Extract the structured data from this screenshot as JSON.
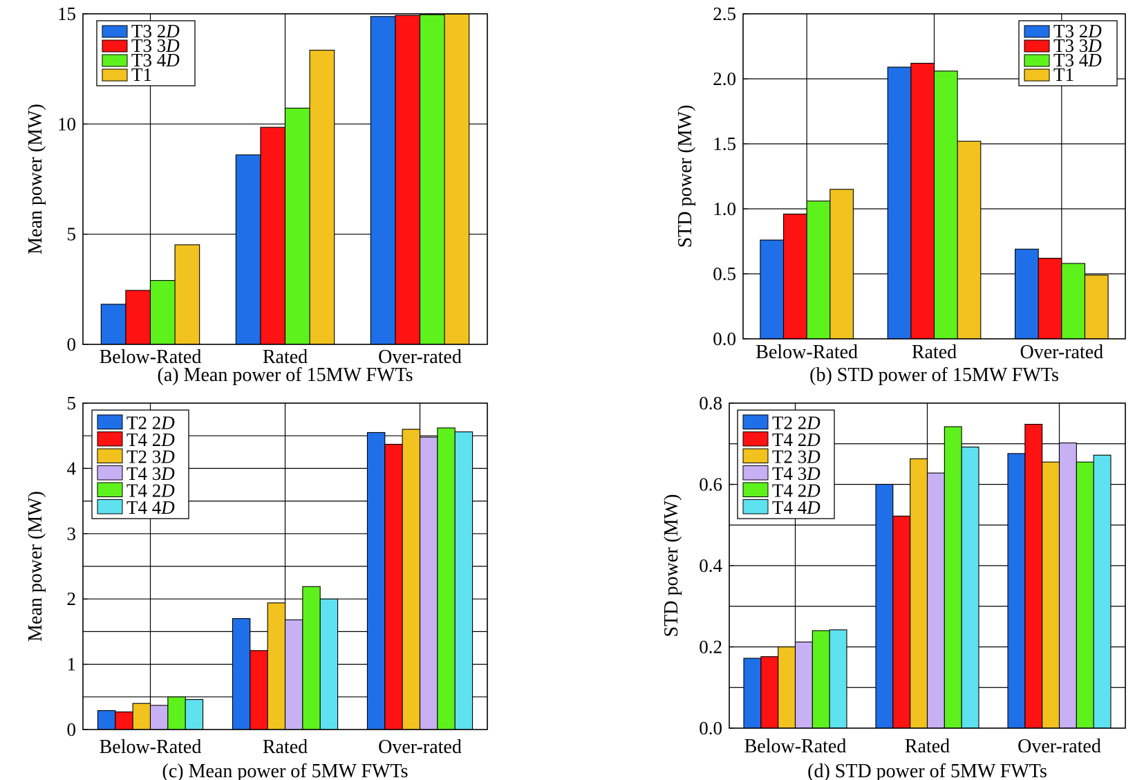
{
  "chart_data": [
    {
      "type": "bar",
      "caption": "(a) Mean power of 15MW FWTs",
      "ylabel": "Mean power (MW)",
      "xlabel": "",
      "categories": [
        "Below-Rated",
        "Rated",
        "Over-rated"
      ],
      "ylim": [
        0,
        15
      ],
      "yticks": [
        0,
        5,
        10,
        15
      ],
      "ytick_labels": [
        "0",
        "5",
        "10",
        "15"
      ],
      "grid": true,
      "legend_position": "top-left",
      "series": [
        {
          "name": "T3 2D",
          "color": "#1f6fe8",
          "values": [
            1.82,
            8.6,
            14.88
          ]
        },
        {
          "name": "T3 3D",
          "color": "#ff1212",
          "values": [
            2.45,
            9.85,
            14.93
          ]
        },
        {
          "name": "T3 4D",
          "color": "#5ef21c",
          "values": [
            2.9,
            10.72,
            14.96
          ]
        },
        {
          "name": "T1",
          "color": "#f2c21e",
          "values": [
            4.52,
            13.35,
            14.99
          ]
        }
      ]
    },
    {
      "type": "bar",
      "caption": "(b) STD power of 15MW FWTs",
      "ylabel": "STD power (MW)",
      "xlabel": "",
      "categories": [
        "Below-Rated",
        "Rated",
        "Over-rated"
      ],
      "ylim": [
        0,
        2.5
      ],
      "yticks": [
        0,
        0.5,
        1.0,
        1.5,
        2.0,
        2.5
      ],
      "ytick_labels": [
        "0.0",
        "0.5",
        "1.0",
        "1.5",
        "2.0",
        "2.5"
      ],
      "grid": true,
      "legend_position": "top-right",
      "series": [
        {
          "name": "T3 2D",
          "color": "#1f6fe8",
          "values": [
            0.76,
            2.09,
            0.69
          ]
        },
        {
          "name": "T3 3D",
          "color": "#ff1212",
          "values": [
            0.96,
            2.12,
            0.62
          ]
        },
        {
          "name": "T3 4D",
          "color": "#5ef21c",
          "values": [
            1.06,
            2.06,
            0.58
          ]
        },
        {
          "name": "T1",
          "color": "#f2c21e",
          "values": [
            1.15,
            1.52,
            0.49
          ]
        }
      ]
    },
    {
      "type": "bar",
      "caption": "(c) Mean power of 5MW FWTs",
      "ylabel": "Mean power (MW)",
      "xlabel": "",
      "categories": [
        "Below-Rated",
        "Rated",
        "Over-rated"
      ],
      "ylim": [
        0,
        5
      ],
      "yticks": [
        0,
        1,
        2,
        3,
        4,
        5
      ],
      "ytick_labels": [
        "0",
        "1",
        "2",
        "3",
        "4",
        "5"
      ],
      "minor_grid_step": 0.5,
      "grid": true,
      "legend_position": "top-left",
      "series": [
        {
          "name": "T2 2D",
          "color": "#1f6fe8",
          "values": [
            0.29,
            1.7,
            4.55
          ]
        },
        {
          "name": "T4 2D",
          "color": "#ff1212",
          "values": [
            0.27,
            1.21,
            4.37
          ]
        },
        {
          "name": "T2 3D",
          "color": "#f2c21e",
          "values": [
            0.4,
            1.94,
            4.6
          ]
        },
        {
          "name": "T4 3D",
          "color": "#c8b0f4",
          "values": [
            0.37,
            1.68,
            4.48
          ]
        },
        {
          "name": "T4 2D",
          "color": "#5ef21c",
          "values": [
            0.5,
            2.19,
            4.62
          ]
        },
        {
          "name": "T4 4D",
          "color": "#5ee2ef",
          "values": [
            0.46,
            2.0,
            4.56
          ]
        }
      ]
    },
    {
      "type": "bar",
      "caption": "(d) STD power of 5MW FWTs",
      "ylabel": "STD power (MW)",
      "xlabel": "",
      "categories": [
        "Below-Rated",
        "Rated",
        "Over-rated"
      ],
      "ylim": [
        0,
        0.8
      ],
      "yticks": [
        0,
        0.2,
        0.4,
        0.6,
        0.8
      ],
      "ytick_labels": [
        "0.0",
        "0.2",
        "0.4",
        "0.6",
        "0.8"
      ],
      "minor_grid_step": 0.1,
      "grid": true,
      "legend_position": "top-left",
      "series": [
        {
          "name": "T2 2D",
          "color": "#1f6fe8",
          "values": [
            0.172,
            0.6,
            0.676
          ]
        },
        {
          "name": "T4 2D",
          "color": "#ff1212",
          "values": [
            0.176,
            0.522,
            0.748
          ]
        },
        {
          "name": "T2 3D",
          "color": "#f2c21e",
          "values": [
            0.2,
            0.663,
            0.655
          ]
        },
        {
          "name": "T4 3D",
          "color": "#c8b0f4",
          "values": [
            0.212,
            0.628,
            0.702
          ]
        },
        {
          "name": "T4 2D",
          "color": "#5ef21c",
          "values": [
            0.24,
            0.742,
            0.655
          ]
        },
        {
          "name": "T4 4D",
          "color": "#5ee2ef",
          "values": [
            0.242,
            0.692,
            0.672
          ]
        }
      ]
    }
  ]
}
